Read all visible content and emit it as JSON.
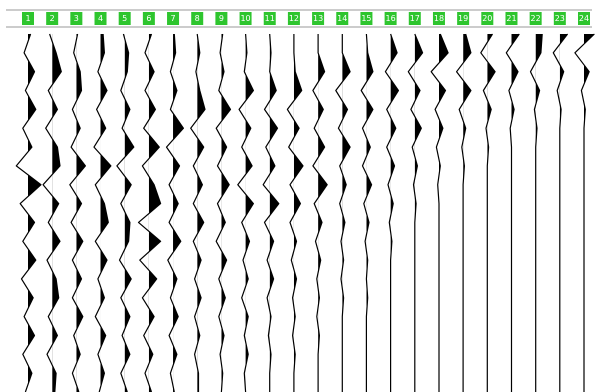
{
  "chart_data": {
    "type": "wiggle",
    "color": "#000000",
    "header_color": "#2ec52e",
    "series": [
      {
        "name": "1",
        "values": [
          0.2,
          -0.3,
          0.5,
          -0.2,
          0.6,
          -0.4,
          0.3,
          -0.9,
          1,
          -0.6,
          0.5,
          -0.4,
          0.6,
          -0.5,
          0.4,
          -0.3,
          0.5,
          -0.4,
          0.3,
          -0.2
        ]
      },
      {
        "name": "2",
        "values": [
          -0.2,
          0.3,
          0.7,
          -0.3,
          0.4,
          -0.5,
          0.4,
          0.6,
          -0.7,
          0.5,
          -0.3,
          0.6,
          -0.4,
          0.3,
          0.5,
          -0.3,
          0.4,
          -0.4,
          0.3,
          0.2
        ]
      },
      {
        "name": "3",
        "values": [
          0.1,
          -0.2,
          0.3,
          0.4,
          -0.3,
          0.3,
          -0.4,
          0.7,
          -0.5,
          0.4,
          -0.4,
          0.5,
          -0.3,
          0.4,
          -0.3,
          0.5,
          -0.2,
          0.3,
          -0.3,
          0.2
        ]
      },
      {
        "name": "4",
        "values": [
          0.2,
          0.3,
          -0.2,
          0.5,
          -0.3,
          0.4,
          -0.5,
          0.8,
          -0.4,
          0.3,
          0.6,
          -0.4,
          0.5,
          -0.2,
          0.3,
          -0.4,
          0.4,
          -0.2,
          0.3,
          -0.1
        ]
      },
      {
        "name": "5",
        "values": [
          -0.1,
          0.3,
          0.2,
          -0.3,
          0.4,
          -0.2,
          0.7,
          -0.6,
          0.5,
          -0.3,
          0.4,
          0.3,
          -0.4,
          0.5,
          -0.3,
          0.4,
          -0.2,
          0.4,
          -0.3,
          0.2
        ]
      },
      {
        "name": "6",
        "values": [
          0.2,
          -0.3,
          0.4,
          -0.3,
          0.5,
          -0.4,
          0.8,
          -0.5,
          0.4,
          0.9,
          -0.8,
          0.9,
          -0.7,
          0.6,
          -0.5,
          0.4,
          -0.4,
          0.3,
          -0.3,
          0.2
        ]
      },
      {
        "name": "7",
        "values": [
          0.1,
          0.2,
          -0.2,
          0.3,
          -0.2,
          0.8,
          -0.5,
          0.5,
          -0.3,
          0.4,
          -0.3,
          0.6,
          -0.4,
          0.3,
          -0.2,
          0.4,
          -0.3,
          0.3,
          -0.2,
          0.1
        ]
      },
      {
        "name": "8",
        "values": [
          0,
          0.2,
          -0.1,
          0.2,
          0.6,
          -0.5,
          0.5,
          -0.3,
          0.4,
          -0.3,
          0.5,
          -0.3,
          0.3,
          -0.2,
          0.3,
          -0.2,
          0.2,
          -0.2,
          0.1,
          0.1
        ]
      },
      {
        "name": "9",
        "values": [
          0.1,
          -0.1,
          0.2,
          -0.2,
          0.7,
          -0.4,
          0.4,
          -0.3,
          0.6,
          -0.3,
          0.3,
          -0.4,
          0.4,
          -0.2,
          0.3,
          -0.2,
          0.2,
          -0.1,
          0.1,
          0
        ]
      },
      {
        "name": "10",
        "values": [
          0,
          0.1,
          -0.1,
          0.6,
          -0.5,
          0.4,
          -0.3,
          0.5,
          -0.6,
          0.6,
          -0.3,
          0.3,
          -0.2,
          0.2,
          -0.3,
          0.2,
          -0.1,
          0.2,
          -0.1,
          0
        ]
      },
      {
        "name": "11",
        "values": [
          0,
          0.1,
          0,
          0.5,
          -0.4,
          0.6,
          -0.3,
          0.4,
          -0.5,
          0.7,
          -0.4,
          0.3,
          -0.2,
          0.3,
          -0.2,
          0.1,
          -0.1,
          0.1,
          0,
          0
        ]
      },
      {
        "name": "12",
        "values": [
          0,
          0,
          0.1,
          0.6,
          -0.5,
          0.4,
          -0.4,
          0.7,
          -0.3,
          0.5,
          -0.3,
          0.2,
          -0.2,
          0.2,
          -0.1,
          0.1,
          -0.1,
          0.1,
          0,
          0
        ]
      },
      {
        "name": "13",
        "values": [
          0,
          0,
          0.5,
          -0.4,
          0.4,
          -0.3,
          0.5,
          -0.4,
          0.7,
          -0.3,
          0.3,
          -0.2,
          0.2,
          -0.1,
          0.1,
          -0.1,
          0.1,
          0,
          0,
          0
        ]
      },
      {
        "name": "14",
        "values": [
          0,
          0,
          0.6,
          -0.5,
          0.4,
          -0.3,
          0.6,
          -0.2,
          0.3,
          -0.2,
          0.2,
          -0.1,
          0.1,
          -0.1,
          0.1,
          0,
          0,
          0,
          0,
          0
        ]
      },
      {
        "name": "15",
        "values": [
          0,
          0.1,
          0.5,
          -0.4,
          0.5,
          -0.3,
          0.3,
          -0.3,
          0.4,
          -0.2,
          0.2,
          -0.1,
          0.1,
          0,
          0.1,
          0,
          0,
          0,
          0,
          0
        ]
      },
      {
        "name": "16",
        "values": [
          0,
          0.5,
          -0.4,
          0.6,
          -0.3,
          0.4,
          -0.3,
          0.3,
          -0.2,
          0.2,
          -0.1,
          0.1,
          0,
          0,
          0,
          0,
          0,
          0,
          0,
          0
        ]
      },
      {
        "name": "17",
        "values": [
          0,
          0.6,
          -0.5,
          0.4,
          -0.3,
          0.5,
          -0.2,
          0.2,
          -0.1,
          0.1,
          0,
          0,
          0,
          0,
          0,
          0,
          0,
          0,
          0,
          0
        ]
      },
      {
        "name": "18",
        "values": [
          0.1,
          0.7,
          -0.6,
          0.5,
          -0.3,
          0.3,
          -0.2,
          0.1,
          -0.1,
          0,
          0,
          0,
          0,
          0,
          0,
          0,
          0,
          0,
          0,
          0
        ]
      },
      {
        "name": "19",
        "values": [
          0.2,
          0.6,
          -0.5,
          0.6,
          -0.3,
          0.2,
          -0.1,
          0.1,
          0,
          0,
          0,
          0,
          0,
          0,
          0,
          0,
          0,
          0,
          0,
          0
        ]
      },
      {
        "name": "20",
        "values": [
          0.4,
          -0.5,
          0.6,
          -0.3,
          0.3,
          -0.1,
          0.1,
          0,
          0,
          0,
          0,
          0,
          0,
          0,
          0,
          0,
          0,
          0,
          0,
          0
        ]
      },
      {
        "name": "21",
        "values": [
          0.6,
          -0.4,
          0.5,
          -0.2,
          0.2,
          -0.1,
          0,
          0,
          0,
          0,
          0,
          0,
          0,
          0,
          0,
          0,
          0,
          0,
          0,
          0
        ]
      },
      {
        "name": "22",
        "values": [
          0.5,
          0.4,
          -0.4,
          0.3,
          -0.1,
          0.1,
          0,
          0,
          0,
          0,
          0,
          0,
          0,
          0,
          0,
          0,
          0,
          0,
          0,
          0
        ]
      },
      {
        "name": "23",
        "values": [
          0.6,
          -0.5,
          0.3,
          -0.2,
          0.1,
          0,
          0,
          0,
          0,
          0,
          0,
          0,
          0,
          0,
          0,
          0,
          0,
          0,
          0,
          0
        ]
      },
      {
        "name": "24",
        "values": [
          0.8,
          -0.7,
          0.4,
          -0.2,
          0.1,
          0,
          0,
          0,
          0,
          0,
          0,
          0,
          0,
          0,
          0,
          0,
          0,
          0,
          0,
          0
        ]
      }
    ]
  }
}
